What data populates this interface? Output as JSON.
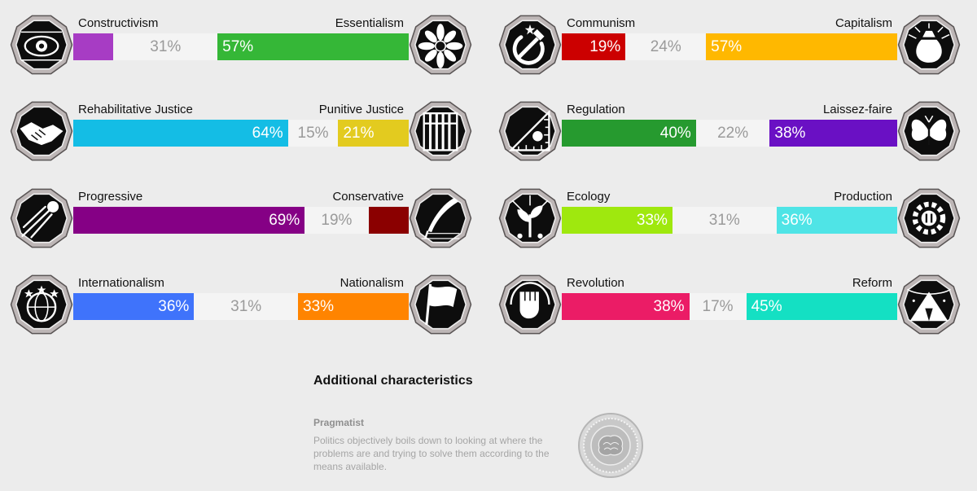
{
  "chart_data": {
    "type": "bar",
    "axes": [
      {
        "left_label": "Constructivism",
        "right_label": "Essentialism",
        "left_value": 12,
        "center_value": 31,
        "right_value": 57,
        "left_color": "#a73cc4",
        "right_color": "#35b737",
        "left_icon": "eye-icon",
        "right_icon": "flower-icon",
        "left_shown": "",
        "center_shown": "31%",
        "right_shown": "57%"
      },
      {
        "left_label": "Communism",
        "right_label": "Capitalism",
        "left_value": 19,
        "center_value": 24,
        "right_value": 57,
        "left_color": "#cc0000",
        "right_color": "#ffb800",
        "left_icon": "hammer-sickle-icon",
        "right_icon": "money-bag-icon",
        "left_shown": "19%",
        "center_shown": "24%",
        "right_shown": "57%"
      },
      {
        "left_label": "Rehabilitative Justice",
        "right_label": "Punitive Justice",
        "left_value": 64,
        "center_value": 15,
        "right_value": 21,
        "left_color": "#14bde5",
        "right_color": "#e3cb1f",
        "left_icon": "handshake-icon",
        "right_icon": "prison-bars-icon",
        "left_shown": "64%",
        "center_shown": "15%",
        "right_shown": "21%"
      },
      {
        "left_label": "Regulation",
        "right_label": "Laissez-faire",
        "left_value": 40,
        "center_value": 22,
        "right_value": 38,
        "left_color": "#269a2f",
        "right_color": "#6a10c4",
        "left_icon": "ruler-icon",
        "right_icon": "butterfly-icon",
        "left_shown": "40%",
        "center_shown": "22%",
        "right_shown": "38%"
      },
      {
        "left_label": "Progressive",
        "right_label": "Conservative",
        "left_value": 69,
        "center_value": 19,
        "right_value": 12,
        "left_color": "#850085",
        "right_color": "#8b0000",
        "left_icon": "comet-icon",
        "right_icon": "quill-icon",
        "left_shown": "69%",
        "center_shown": "19%",
        "right_shown": ""
      },
      {
        "left_label": "Ecology",
        "right_label": "Production",
        "left_value": 33,
        "center_value": 31,
        "right_value": 36,
        "left_color": "#9fe80e",
        "right_color": "#4fe4e6",
        "left_icon": "plant-icon",
        "right_icon": "gear-icon",
        "left_shown": "33%",
        "center_shown": "31%",
        "right_shown": "36%"
      },
      {
        "left_label": "Internationalism",
        "right_label": "Nationalism",
        "left_value": 36,
        "center_value": 31,
        "right_value": 33,
        "left_color": "#3f73fb",
        "right_color": "#ff8400",
        "left_icon": "globe-icon",
        "right_icon": "flag-icon",
        "left_shown": "36%",
        "center_shown": "31%",
        "right_shown": "33%"
      },
      {
        "left_label": "Revolution",
        "right_label": "Reform",
        "left_value": 38,
        "center_value": 17,
        "right_value": 45,
        "left_color": "#eb1c66",
        "right_color": "#14e0c3",
        "left_icon": "fist-icon",
        "right_icon": "tent-icon",
        "left_shown": "38%",
        "center_shown": "17%",
        "right_shown": "45%"
      }
    ]
  },
  "additional": {
    "heading": "Additional characteristics",
    "trait_name": "Pragmatist",
    "trait_description": "Politics objectively boils down to looking at where the problems are and trying to solve them according to the means available.",
    "seal_icon": "brain-seal-icon"
  }
}
